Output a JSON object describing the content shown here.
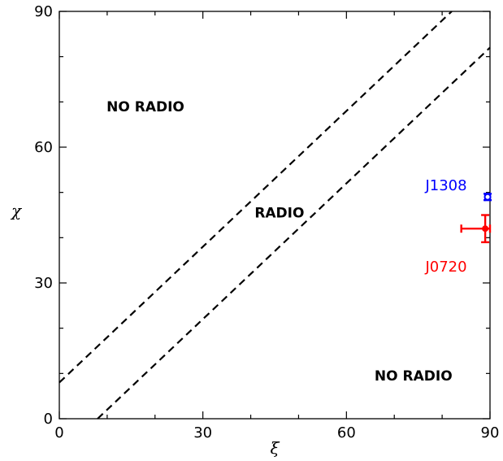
{
  "chart_data": {
    "type": "scatter",
    "xlabel": "ξ",
    "ylabel": "χ",
    "xlim": [
      0,
      90
    ],
    "ylim": [
      0,
      90
    ],
    "x_ticks": [
      "0",
      "30",
      "60",
      "90"
    ],
    "y_ticks": [
      "0",
      "30",
      "60",
      "90"
    ],
    "grid": false,
    "boundary_lines": [
      {
        "style": "dashed",
        "color": "#000000",
        "points": [
          [
            0,
            8
          ],
          [
            82,
            90
          ]
        ]
      },
      {
        "style": "dashed",
        "color": "#000000",
        "points": [
          [
            8,
            0
          ],
          [
            90,
            82
          ]
        ]
      }
    ],
    "region_labels": [
      {
        "text": "NO RADIO",
        "x": 18,
        "y": 69
      },
      {
        "text": "RADIO",
        "x": 46,
        "y": 45.5
      },
      {
        "text": "NO RADIO",
        "x": 74,
        "y": 9.5
      }
    ],
    "points": [
      {
        "label": "J1308",
        "color": "#0000ff",
        "x": 89.5,
        "y": 49,
        "x_err": [
          0.5,
          0.5
        ],
        "y_err": [
          0.7,
          0.7
        ],
        "marker": "open-circle"
      },
      {
        "label": "J0720",
        "color": "#ff0000",
        "x": 89,
        "y": 42,
        "x_err": [
          5,
          1
        ],
        "y_err": [
          3,
          3
        ],
        "marker": "filled-circle"
      }
    ]
  }
}
